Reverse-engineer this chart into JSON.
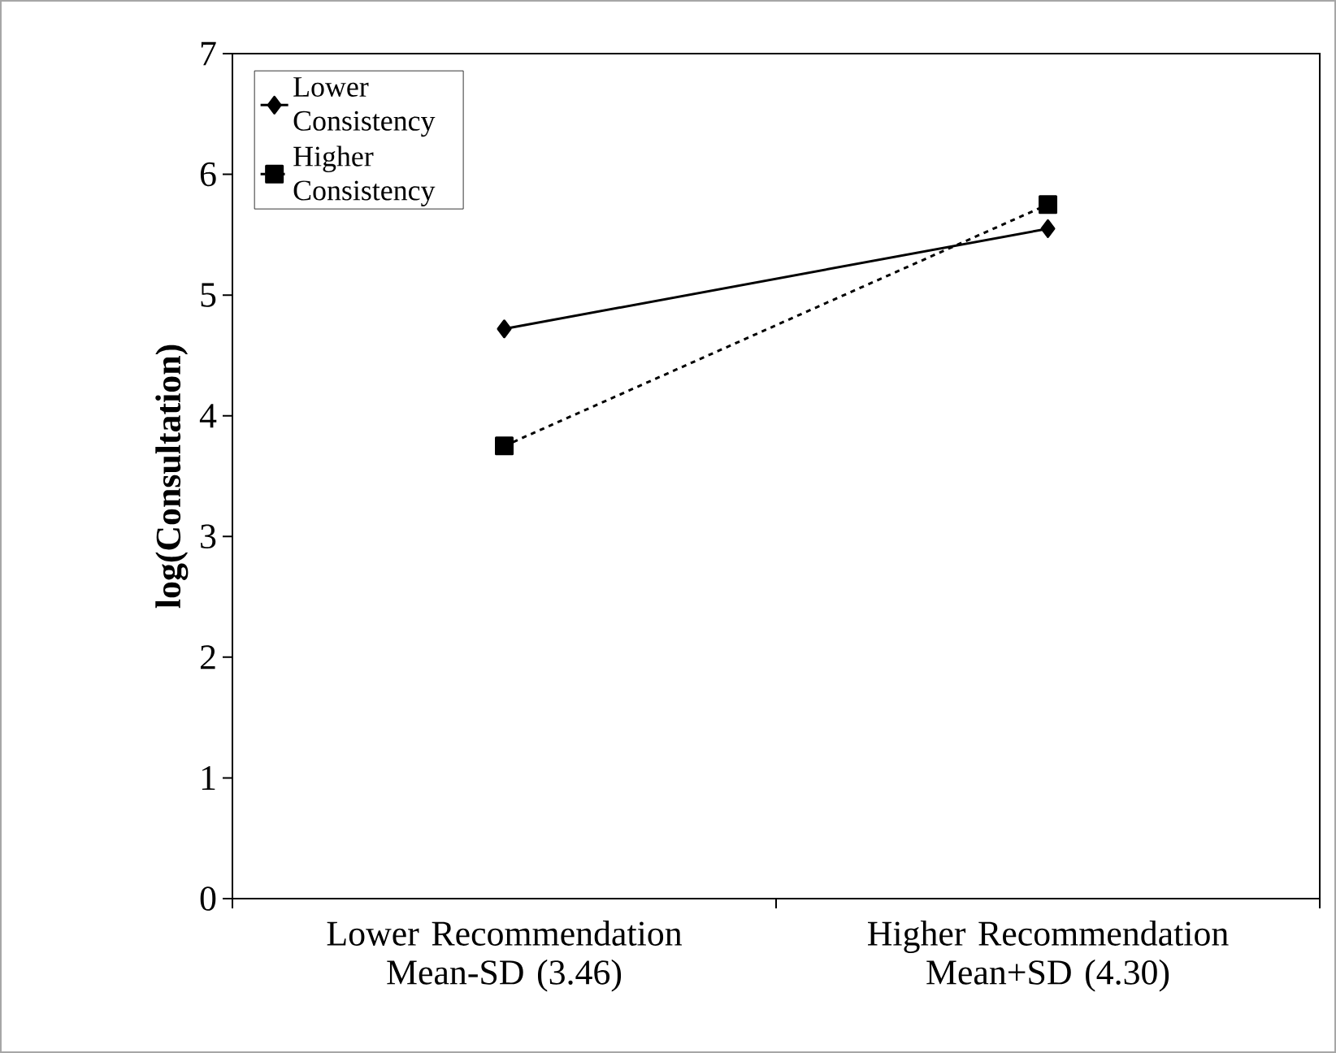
{
  "chart_data": {
    "type": "line",
    "ylabel": "log(Consultation)",
    "categories": [
      "Lower Recommendation Mean-SD (3.46)",
      "Higher Recommendation Mean+SD (4.30)"
    ],
    "ylim": [
      0,
      7
    ],
    "yticks": [
      0,
      1,
      2,
      3,
      4,
      5,
      6,
      7
    ],
    "grid": false,
    "legend": "top left",
    "series": [
      {
        "name": "Lower Consistency",
        "color": "#000000",
        "values": [
          4.72,
          5.55
        ],
        "marker": "diamond",
        "line_style": "solid"
      },
      {
        "name": "Higher Consistency",
        "color": "#000000",
        "values": [
          3.75,
          5.75
        ],
        "marker": "square",
        "line_style": "dashed"
      }
    ]
  }
}
